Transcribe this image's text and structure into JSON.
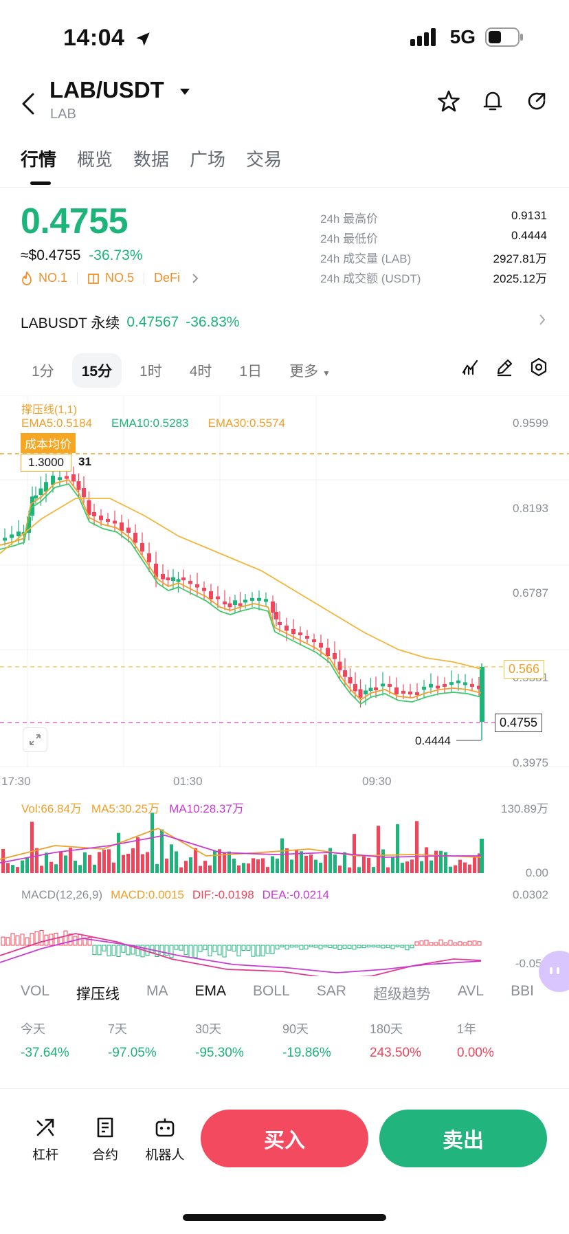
{
  "status_bar": {
    "time": "14:04",
    "network": "5G"
  },
  "header": {
    "title": "LAB/USDT",
    "subtitle": "LAB"
  },
  "tabs": [
    "行情",
    "概览",
    "数据",
    "广场",
    "交易"
  ],
  "price": {
    "last": "0.4755",
    "usd": "≈$0.4755",
    "change": "-36.73%",
    "tags": [
      "NO.1",
      "NO.5",
      "DeFi"
    ]
  },
  "stats": [
    {
      "label": "24h 最高价",
      "value": "0.9131"
    },
    {
      "label": "24h 最低价",
      "value": "0.4444"
    },
    {
      "label": "24h 成交量 (LAB)",
      "value": "2927.81万"
    },
    {
      "label": "24h 成交额 (USDT)",
      "value": "2025.12万"
    }
  ],
  "perpetual": {
    "name": "LABUSDT 永续",
    "price": "0.47567",
    "change": "-36.83%"
  },
  "timeframes": [
    "1分",
    "15分",
    "1时",
    "4时",
    "1日",
    "更多"
  ],
  "chart": {
    "legend_title": "撑压线(1,1)",
    "ema5": "EMA5:0.5184",
    "ema10": "EMA10:0.5283",
    "ema30": "EMA30:0.5574",
    "cost_label": "成本均价",
    "cost_value": "1.3000",
    "cost_suffix": "31",
    "y_labels": [
      "0.9599",
      "0.8193",
      "0.6787",
      "0.5381",
      "0.3975"
    ],
    "support_level": "0.566",
    "current_price": "0.4755",
    "low_value": "0.4444",
    "x_labels": [
      "17:30",
      "01:30",
      "09:30"
    ],
    "vol": "Vol:66.84万",
    "vol_ma5": "MA5:30.25万",
    "vol_ma10": "MA10:28.37万",
    "vol_max": "130.89万",
    "vol_min": "0.00",
    "macd_title": "MACD(12,26,9)",
    "macd_val": "MACD:0.0015",
    "dif": "DIF:-0.0198",
    "dea": "DEA:-0.0214",
    "macd_max": "0.0302",
    "macd_min": "-0.052"
  },
  "indicators": [
    "VOL",
    "撑压线",
    "MA",
    "EMA",
    "BOLL",
    "SAR",
    "超级趋势",
    "AVL",
    "BBI"
  ],
  "periods": [
    {
      "label": "今天",
      "value": "-37.64%"
    },
    {
      "label": "7天",
      "value": "-97.05%"
    },
    {
      "label": "30天",
      "value": "-95.30%"
    },
    {
      "label": "90天",
      "value": "-19.86%"
    },
    {
      "label": "180天",
      "value": "243.50%"
    },
    {
      "label": "1年",
      "value": "0.00%"
    }
  ],
  "bottom": {
    "leverage": "杠杆",
    "contract": "合约",
    "robot": "机器人",
    "buy": "买入",
    "sell": "卖出"
  },
  "colors": {
    "up": "#1db47a",
    "down": "#f0455a",
    "accent": "#f5a623"
  }
}
